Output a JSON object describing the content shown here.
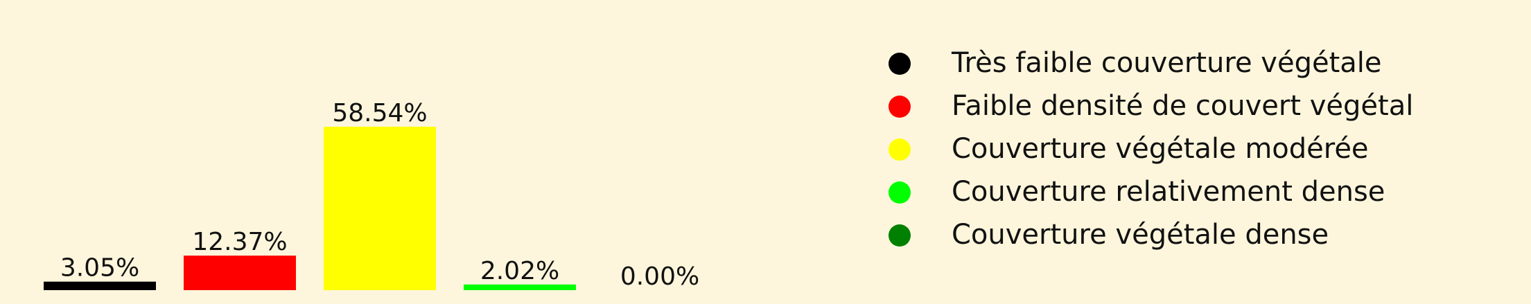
{
  "background_color": "#fdf6dc",
  "chart_data": {
    "type": "bar",
    "title": "",
    "xlabel": "",
    "ylabel": "",
    "ylim": [
      0,
      58.54
    ],
    "grid": false,
    "legend_position": "right",
    "categories": [
      "Très faible couverture végétale",
      "Faible densité de couvert végétal",
      "Couverture végétale modérée",
      "Couverture relativement dense",
      "Couverture végétale dense"
    ],
    "values": [
      3.05,
      12.37,
      58.54,
      2.02,
      0.0
    ],
    "value_labels": [
      "3.05%",
      "12.37%",
      "58.54%",
      "2.02%",
      "0.00%"
    ],
    "colors": [
      "#000000",
      "#ff0000",
      "#ffff00",
      "#00ff00",
      "#008000"
    ],
    "legend": [
      {
        "label": "Très faible couverture végétale",
        "color": "#000000"
      },
      {
        "label": "Faible densité de couvert végétal",
        "color": "#ff0000"
      },
      {
        "label": "Couverture végétale modérée",
        "color": "#ffff00"
      },
      {
        "label": "Couverture relativement dense",
        "color": "#00ff00"
      },
      {
        "label": "Couverture végétale dense",
        "color": "#008000"
      }
    ]
  }
}
